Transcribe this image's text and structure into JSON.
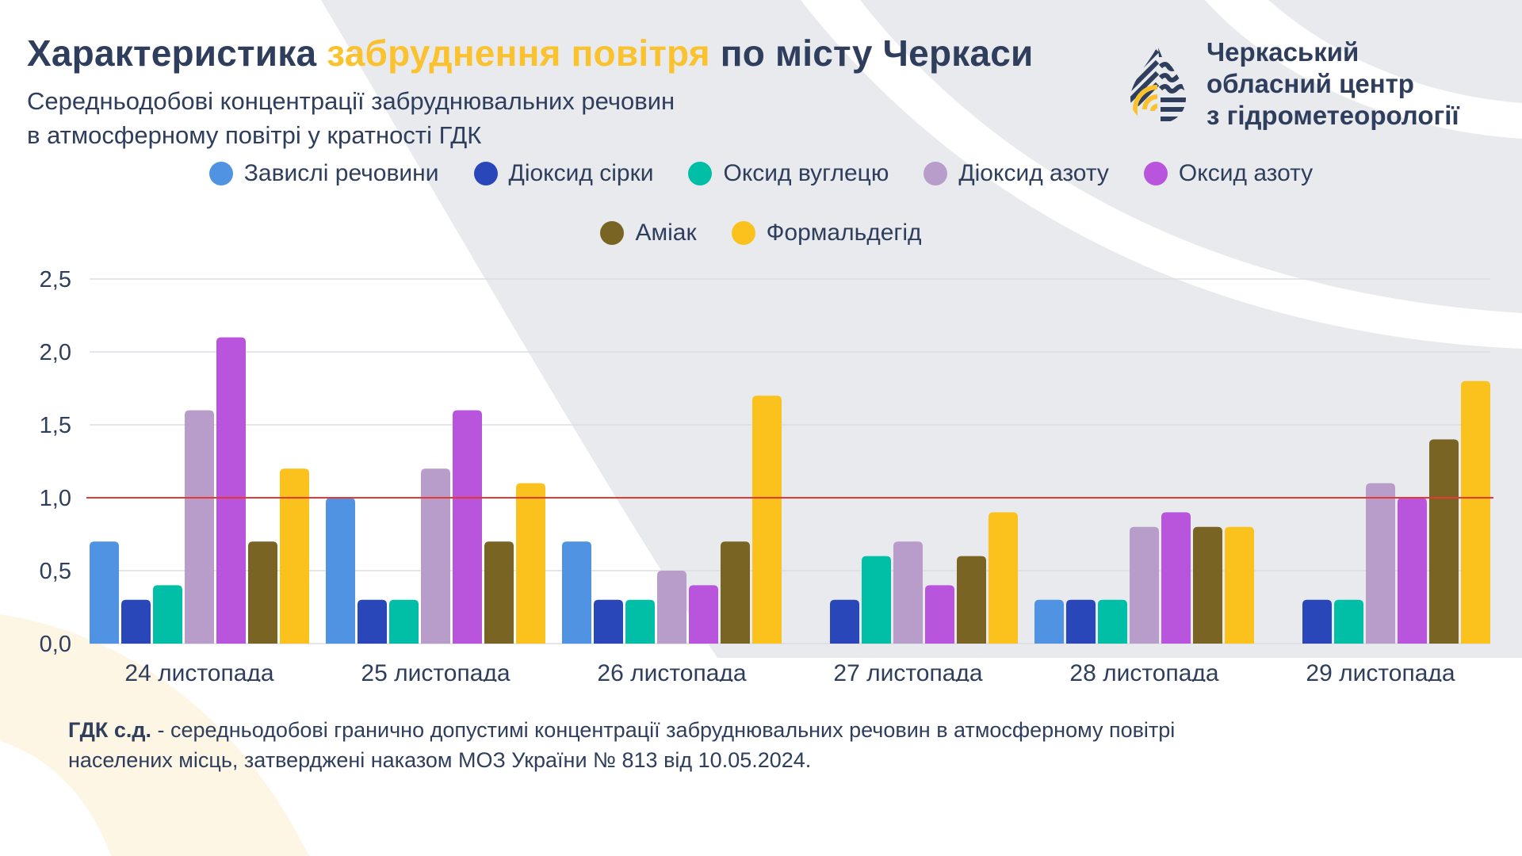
{
  "header": {
    "title_part1": "Характеристика ",
    "title_accent": "забруднення повітря",
    "title_part2": " по місту Черкаси",
    "subtitle_line1": "Середньодобові концентрації забруднювальних речовин",
    "subtitle_line2": "в атмосферному повітрі у кратності ГДК"
  },
  "logo": {
    "icon": "drop-logo-icon",
    "line1": "Черкаський",
    "line2": "обласний центр",
    "line3": "з гідрометеорології"
  },
  "colors": {
    "text": "#2E3E5C",
    "accent": "#F9C22E",
    "threshold": "#E53935",
    "background_shape": "#E8EAEE",
    "background_warm": "#FEF6E4"
  },
  "chart_data": {
    "type": "bar",
    "title": "Характеристика забруднення повітря по місту Черкаси",
    "xlabel": "",
    "ylabel": "",
    "ylim": [
      0,
      2.5
    ],
    "yticks": [
      0,
      0.5,
      1.0,
      1.5,
      2.0,
      2.5
    ],
    "ytick_labels": [
      "0,0",
      "0,5",
      "1,0",
      "1,5",
      "2,0",
      "2,5"
    ],
    "grid": true,
    "legend_position": "top-center",
    "threshold_line": 1.0,
    "categories": [
      "24 листопада",
      "25 листопада",
      "26 листопада",
      "27 листопада",
      "28 листопада",
      "29 листопада"
    ],
    "series": [
      {
        "name": "Завислі речовини",
        "color": "#5193E3",
        "values": [
          0.7,
          1.0,
          0.7,
          null,
          0.3,
          null
        ]
      },
      {
        "name": "Діоксид сірки",
        "color": "#2947B8",
        "values": [
          0.3,
          0.3,
          0.3,
          0.3,
          0.3,
          0.3
        ]
      },
      {
        "name": "Оксид вуглецю",
        "color": "#00BFA6",
        "values": [
          0.4,
          0.3,
          0.3,
          0.6,
          0.3,
          0.3
        ]
      },
      {
        "name": "Діоксид азоту",
        "color": "#B89DCA",
        "values": [
          1.6,
          1.2,
          0.5,
          0.7,
          0.8,
          1.1
        ]
      },
      {
        "name": "Оксид азоту",
        "color": "#B954DC",
        "values": [
          2.1,
          1.6,
          0.4,
          0.4,
          0.9,
          1.0
        ]
      },
      {
        "name": "Аміак",
        "color": "#7A6424",
        "values": [
          0.7,
          0.7,
          0.7,
          0.6,
          0.8,
          1.4
        ]
      },
      {
        "name": "Формальдегід",
        "color": "#FBC11C",
        "values": [
          1.2,
          1.1,
          1.7,
          0.9,
          0.8,
          1.8
        ]
      }
    ]
  },
  "footer": {
    "term": "ГДК с.д.",
    "definition_line1": " - середньодобові гранично допустимі концентрації забруднювальних речовин в атмосферному повітрі",
    "definition_line2": "населених місць, затверджені наказом МОЗ України № 813 від 10.05.2024."
  }
}
